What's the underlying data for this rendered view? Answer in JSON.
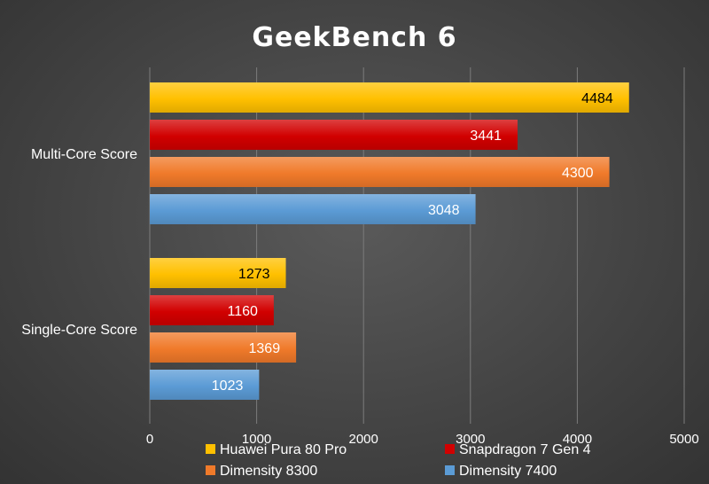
{
  "chart_data": {
    "type": "bar",
    "orientation": "horizontal",
    "title": "GeekBench 6",
    "categories": [
      "Multi-Core Score",
      "Single-Core Score"
    ],
    "series": [
      {
        "name": "Huawei Pura 80 Pro",
        "values": [
          4484,
          1273
        ],
        "color": "#ffc000",
        "label_color": "#000000"
      },
      {
        "name": "Snapdragon 7 Gen 4",
        "values": [
          3441,
          1160
        ],
        "color": "#d10000",
        "label_color": "#ffffff"
      },
      {
        "name": "Dimensity 8300",
        "values": [
          4300,
          1369
        ],
        "color": "#f07a2a",
        "label_color": "#ffffff"
      },
      {
        "name": "Dimensity 7400",
        "values": [
          3048,
          1023
        ],
        "color": "#5b9bd5",
        "label_color": "#ffffff"
      }
    ],
    "xlim": [
      0,
      5000
    ],
    "x_ticks": [
      0,
      1000,
      2000,
      3000,
      4000,
      5000
    ],
    "grid": true,
    "legend_position": "bottom"
  }
}
